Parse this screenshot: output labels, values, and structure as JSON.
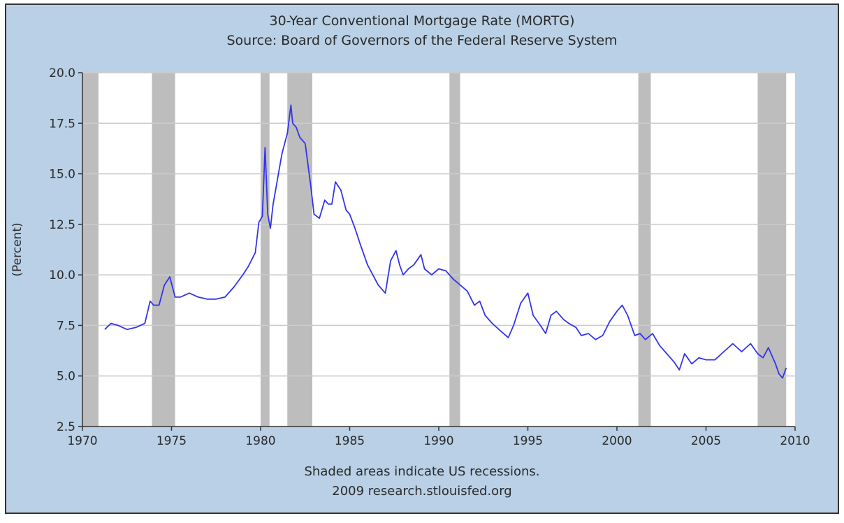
{
  "colors": {
    "panel_background": "#b9d0e6",
    "panel_border": "#333333",
    "plot_background": "#ffffff",
    "grid": "#cccccc",
    "recession_shading": "#bdbdbd",
    "series_line": "#3333ee"
  },
  "chart_data": {
    "type": "line",
    "title": "30-Year Conventional Mortgage Rate (MORTG)",
    "subtitle": "Source: Board of Governors of the Federal Reserve System",
    "xlabel": "",
    "ylabel": "(Percent)",
    "xlim": [
      1970,
      2010
    ],
    "ylim": [
      2.5,
      20.0
    ],
    "x_ticks": [
      1970,
      1975,
      1980,
      1985,
      1990,
      1995,
      2000,
      2005,
      2010
    ],
    "x_tick_labels": [
      "1970",
      "1975",
      "1980",
      "1985",
      "1990",
      "1995",
      "2000",
      "2005",
      "2010"
    ],
    "y_ticks": [
      2.5,
      5.0,
      7.5,
      10.0,
      12.5,
      15.0,
      17.5,
      20.0
    ],
    "y_tick_labels": [
      "2.5",
      "5.0",
      "7.5",
      "10.0",
      "12.5",
      "15.0",
      "17.5",
      "20.0"
    ],
    "grid": "horizontal",
    "legend": "none",
    "recessions": [
      [
        1969.9,
        1970.9
      ],
      [
        1973.9,
        1975.2
      ],
      [
        1980.0,
        1980.5
      ],
      [
        1981.5,
        1982.9
      ],
      [
        1990.6,
        1991.2
      ],
      [
        2001.2,
        2001.9
      ],
      [
        2007.9,
        2009.5
      ]
    ],
    "footnotes": [
      "Shaded areas indicate US recessions.",
      "2009 research.stlouisfed.org"
    ],
    "series": [
      {
        "x": [
          1971.25,
          1971.6,
          1972.0,
          1972.5,
          1973.0,
          1973.5,
          1973.8,
          1974.0,
          1974.3,
          1974.6,
          1974.9,
          1975.2,
          1975.5,
          1976.0,
          1976.5,
          1977.0,
          1977.5,
          1978.0,
          1978.5,
          1979.0,
          1979.3,
          1979.7,
          1979.9,
          1980.1,
          1980.25,
          1980.4,
          1980.55,
          1980.7,
          1980.9,
          1981.0,
          1981.2,
          1981.5,
          1981.7,
          1981.8,
          1982.0,
          1982.2,
          1982.5,
          1982.8,
          1983.0,
          1983.3,
          1983.6,
          1983.8,
          1984.0,
          1984.2,
          1984.5,
          1984.8,
          1985.0,
          1985.3,
          1985.6,
          1986.0,
          1986.3,
          1986.6,
          1987.0,
          1987.3,
          1987.6,
          1987.8,
          1988.0,
          1988.3,
          1988.6,
          1989.0,
          1989.2,
          1989.6,
          1990.0,
          1990.4,
          1990.8,
          1991.2,
          1991.6,
          1992.0,
          1992.3,
          1992.6,
          1993.0,
          1993.5,
          1993.9,
          1994.2,
          1994.6,
          1995.0,
          1995.3,
          1995.7,
          1996.0,
          1996.3,
          1996.6,
          1997.0,
          1997.3,
          1997.7,
          1998.0,
          1998.4,
          1998.8,
          1999.2,
          1999.6,
          2000.0,
          2000.3,
          2000.6,
          2001.0,
          2001.3,
          2001.6,
          2002.0,
          2002.4,
          2002.8,
          2003.2,
          2003.5,
          2003.8,
          2004.2,
          2004.6,
          2005.0,
          2005.5,
          2006.0,
          2006.5,
          2007.0,
          2007.5,
          2007.9,
          2008.2,
          2008.5,
          2008.9,
          2009.1,
          2009.3,
          2009.5
        ],
        "y": [
          7.3,
          7.6,
          7.5,
          7.3,
          7.4,
          7.6,
          8.7,
          8.5,
          8.5,
          9.5,
          9.9,
          8.9,
          8.9,
          9.1,
          8.9,
          8.8,
          8.8,
          8.9,
          9.4,
          10.0,
          10.4,
          11.1,
          12.6,
          12.9,
          16.3,
          13.0,
          12.3,
          13.5,
          14.5,
          15.0,
          16.0,
          17.0,
          18.4,
          17.5,
          17.3,
          16.8,
          16.5,
          14.5,
          13.0,
          12.8,
          13.7,
          13.5,
          13.5,
          14.6,
          14.2,
          13.2,
          13.0,
          12.3,
          11.5,
          10.5,
          10.0,
          9.5,
          9.1,
          10.7,
          11.2,
          10.5,
          10.0,
          10.3,
          10.5,
          11.0,
          10.3,
          10.0,
          10.3,
          10.2,
          9.8,
          9.5,
          9.2,
          8.5,
          8.7,
          8.0,
          7.6,
          7.2,
          6.9,
          7.5,
          8.6,
          9.1,
          8.0,
          7.5,
          7.1,
          8.0,
          8.2,
          7.8,
          7.6,
          7.4,
          7.0,
          7.1,
          6.8,
          7.0,
          7.7,
          8.2,
          8.5,
          8.0,
          7.0,
          7.1,
          6.8,
          7.1,
          6.5,
          6.1,
          5.7,
          5.3,
          6.1,
          5.6,
          5.9,
          5.8,
          5.8,
          6.2,
          6.6,
          6.2,
          6.6,
          6.1,
          5.9,
          6.4,
          5.6,
          5.1,
          4.9,
          5.4
        ]
      }
    ]
  }
}
